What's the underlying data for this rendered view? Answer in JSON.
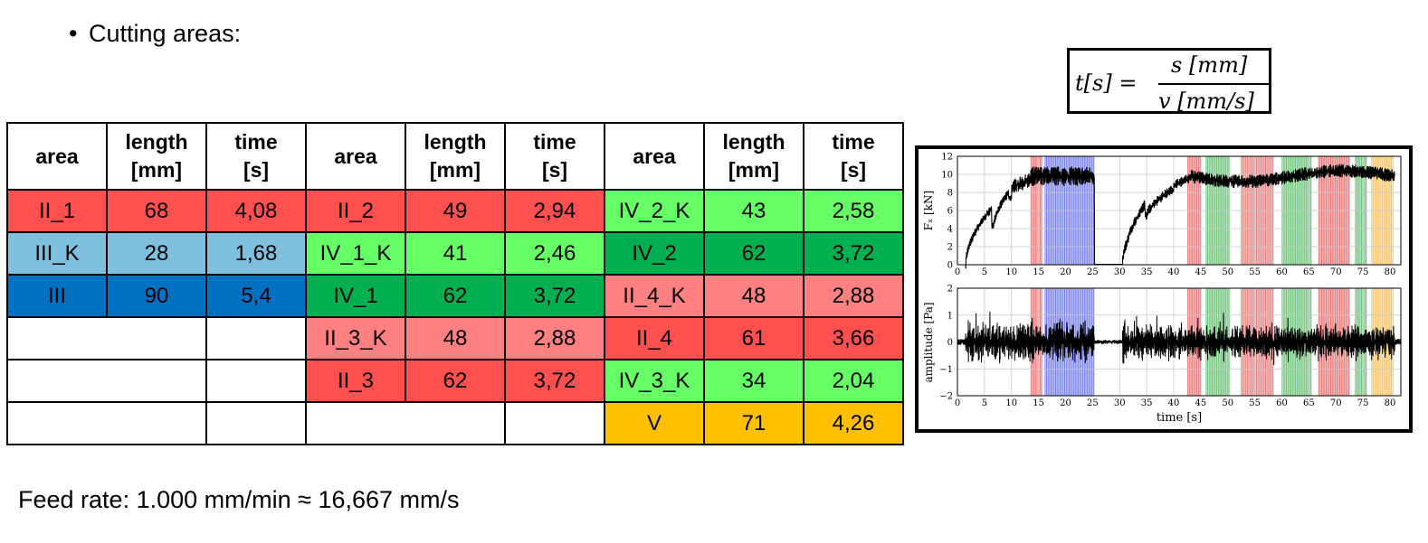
{
  "bullet_title": "Cutting areas:",
  "formula": {
    "lhs": "t[s] =",
    "numerator": "s [mm]",
    "denominator": "v [mm/s]"
  },
  "table": {
    "headers": [
      "area",
      "length\n[mm]",
      "time\n[s]",
      "area",
      "length\n[mm]",
      "time\n[s]",
      "area",
      "length\n[mm]",
      "time\n[s]"
    ],
    "rows": [
      [
        {
          "t": "II_1",
          "c": "#ff5050"
        },
        {
          "t": "68",
          "c": "#ff5050"
        },
        {
          "t": "4,08",
          "c": "#ff5050"
        },
        {
          "t": "II_2",
          "c": "#ff5050"
        },
        {
          "t": "49",
          "c": "#ff5050"
        },
        {
          "t": "2,94",
          "c": "#ff5050"
        },
        {
          "t": "IV_2_K",
          "c": "#66ff66"
        },
        {
          "t": "43",
          "c": "#66ff66"
        },
        {
          "t": "2,58",
          "c": "#66ff66"
        }
      ],
      [
        {
          "t": "III_K",
          "c": "#7ec0dd"
        },
        {
          "t": "28",
          "c": "#7ec0dd"
        },
        {
          "t": "1,68",
          "c": "#7ec0dd"
        },
        {
          "t": "IV_1_K",
          "c": "#66ff66"
        },
        {
          "t": "41",
          "c": "#66ff66"
        },
        {
          "t": "2,46",
          "c": "#66ff66"
        },
        {
          "t": "IV_2",
          "c": "#00b050"
        },
        {
          "t": "62",
          "c": "#00b050"
        },
        {
          "t": "3,72",
          "c": "#00b050"
        }
      ],
      [
        {
          "t": "III",
          "c": "#0070c0"
        },
        {
          "t": "90",
          "c": "#0070c0"
        },
        {
          "t": "5,4",
          "c": "#0070c0"
        },
        {
          "t": "IV_1",
          "c": "#00b050"
        },
        {
          "t": "62",
          "c": "#00b050"
        },
        {
          "t": "3,72",
          "c": "#00b050"
        },
        {
          "t": "II_4_K",
          "c": "#ff8080"
        },
        {
          "t": "48",
          "c": "#ff8080"
        },
        {
          "t": "2,88",
          "c": "#ff8080"
        }
      ],
      [
        {
          "t": "",
          "c": "#ffffff",
          "span": 2
        },
        {
          "t": "",
          "c": "#ffffff"
        },
        {
          "t": "II_3_K",
          "c": "#ff8080"
        },
        {
          "t": "48",
          "c": "#ff8080"
        },
        {
          "t": "2,88",
          "c": "#ff8080"
        },
        {
          "t": "II_4",
          "c": "#ff5050"
        },
        {
          "t": "61",
          "c": "#ff5050"
        },
        {
          "t": "3,66",
          "c": "#ff5050"
        }
      ],
      [
        {
          "t": "",
          "c": "#ffffff",
          "span": 2
        },
        {
          "t": "",
          "c": "#ffffff"
        },
        {
          "t": "II_3",
          "c": "#ff5050"
        },
        {
          "t": "62",
          "c": "#ff5050"
        },
        {
          "t": "3,72",
          "c": "#ff5050"
        },
        {
          "t": "IV_3_K",
          "c": "#66ff66"
        },
        {
          "t": "34",
          "c": "#66ff66"
        },
        {
          "t": "2,04",
          "c": "#66ff66"
        }
      ],
      [
        {
          "t": "",
          "c": "#ffffff",
          "span": 2
        },
        {
          "t": "",
          "c": "#ffffff"
        },
        {
          "t": "",
          "c": "#ffffff",
          "span": 2
        },
        {
          "t": "",
          "c": "#ffffff"
        },
        {
          "t": "V",
          "c": "#ffc000"
        },
        {
          "t": "71",
          "c": "#ffc000"
        },
        {
          "t": "4,26",
          "c": "#ffc000"
        }
      ]
    ]
  },
  "feed_rate": "Feed rate: 1.000 mm/min ≈ 16,667 mm/s",
  "plots": {
    "xticks": [
      0,
      5,
      10,
      15,
      20,
      25,
      30,
      35,
      40,
      45,
      50,
      55,
      60,
      65,
      70,
      75,
      80
    ],
    "xlabel": "time [s]",
    "top": {
      "ylabel": "Fₓ [kN]",
      "yticks": [
        0,
        2,
        4,
        6,
        8,
        10,
        12
      ]
    },
    "bottom": {
      "ylabel": "amplitude [Pa]",
      "yticks": [
        "2",
        "1",
        "0",
        "−1",
        "−2"
      ]
    },
    "bands": [
      {
        "from": 13.6,
        "to": 15.8,
        "color": "#e02020"
      },
      {
        "from": 16.2,
        "to": 25.4,
        "color": "#2030e0"
      },
      {
        "from": 42.6,
        "to": 45.1,
        "color": "#e02020"
      },
      {
        "from": 46.0,
        "to": 50.4,
        "color": "#10a020"
      },
      {
        "from": 52.5,
        "to": 58.4,
        "color": "#e03030"
      },
      {
        "from": 60.0,
        "to": 65.6,
        "color": "#10a020"
      },
      {
        "from": 66.8,
        "to": 72.6,
        "color": "#e02020"
      },
      {
        "from": 73.6,
        "to": 75.8,
        "color": "#10a020"
      },
      {
        "from": 76.6,
        "to": 80.6,
        "color": "#f0a000"
      }
    ]
  }
}
